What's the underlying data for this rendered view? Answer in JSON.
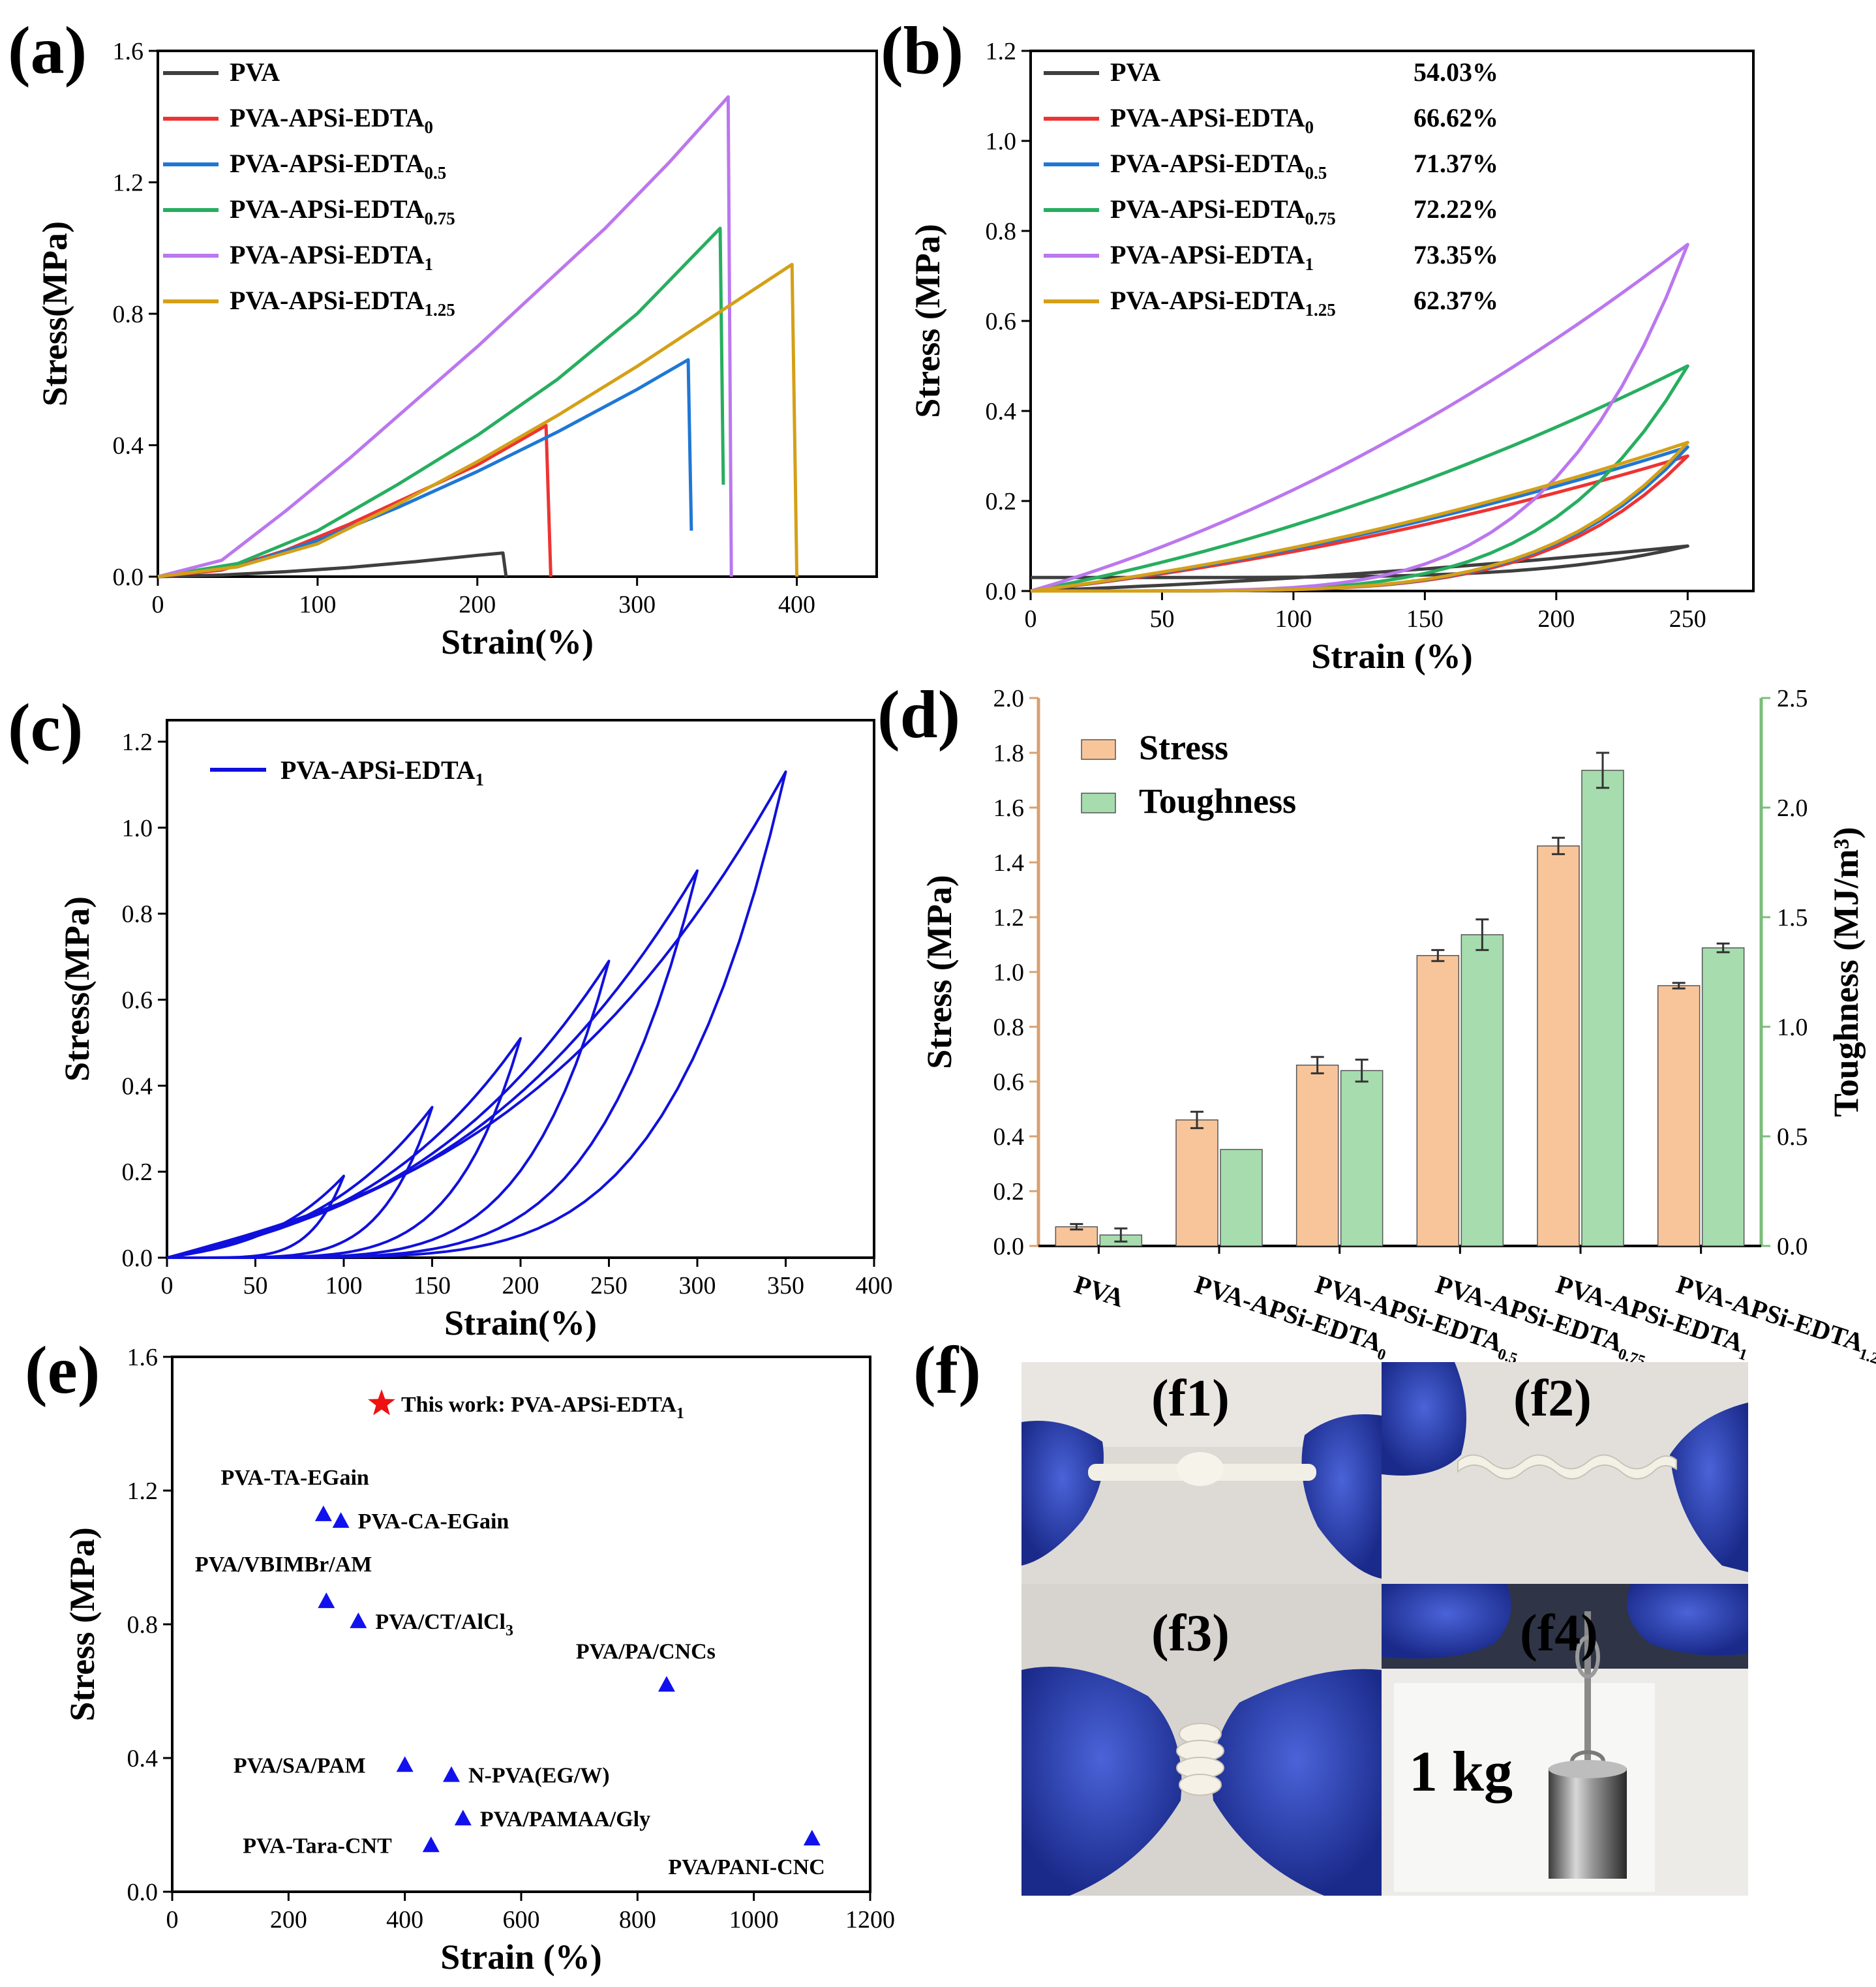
{
  "chart_data": [
    {
      "panel": "(a)",
      "type": "line",
      "xlabel": "Strain(%)",
      "ylabel": "Stress(MPa)",
      "xlim": [
        0,
        450
      ],
      "ylim": [
        0,
        1.6
      ],
      "xticks": [
        0,
        100,
        200,
        300,
        400
      ],
      "yticks": [
        0.0,
        0.4,
        0.8,
        1.2,
        1.6
      ],
      "ytick_labels": [
        "0.0",
        "0.4",
        "0.8",
        "1.2",
        "1.6"
      ],
      "legend_position": "top-left",
      "series": [
        {
          "name": "PVA",
          "sub": "",
          "color": "#3f3f3f",
          "points": [
            [
              0,
              0
            ],
            [
              40,
              0.005
            ],
            [
              80,
              0.015
            ],
            [
              120,
              0.028
            ],
            [
              160,
              0.045
            ],
            [
              200,
              0.065
            ],
            [
              216,
              0.072
            ],
            [
              218,
              0.0
            ]
          ]
        },
        {
          "name": "PVA-APSi-EDTA",
          "sub": "0",
          "color": "#ee3333",
          "points": [
            [
              0,
              0
            ],
            [
              40,
              0.02
            ],
            [
              80,
              0.08
            ],
            [
              120,
              0.16
            ],
            [
              160,
              0.25
            ],
            [
              200,
              0.34
            ],
            [
              243,
              0.46
            ],
            [
              246,
              0.0
            ]
          ]
        },
        {
          "name": "PVA-APSi-EDTA",
          "sub": "0.5",
          "color": "#1f77d4",
          "points": [
            [
              0,
              0
            ],
            [
              50,
              0.03
            ],
            [
              100,
              0.11
            ],
            [
              150,
              0.21
            ],
            [
              200,
              0.32
            ],
            [
              250,
              0.44
            ],
            [
              300,
              0.57
            ],
            [
              332,
              0.66
            ],
            [
              334,
              0.14
            ]
          ]
        },
        {
          "name": "PVA-APSi-EDTA",
          "sub": "0.75",
          "color": "#27ae60",
          "points": [
            [
              0,
              0
            ],
            [
              50,
              0.04
            ],
            [
              100,
              0.14
            ],
            [
              150,
              0.28
            ],
            [
              200,
              0.43
            ],
            [
              250,
              0.6
            ],
            [
              300,
              0.8
            ],
            [
              352,
              1.06
            ],
            [
              354,
              0.28
            ]
          ]
        },
        {
          "name": "PVA-APSi-EDTA",
          "sub": "1",
          "color": "#bb77ee",
          "points": [
            [
              0,
              0
            ],
            [
              40,
              0.05
            ],
            [
              80,
              0.2
            ],
            [
              120,
              0.36
            ],
            [
              160,
              0.53
            ],
            [
              200,
              0.7
            ],
            [
              240,
              0.88
            ],
            [
              280,
              1.06
            ],
            [
              320,
              1.26
            ],
            [
              357,
              1.46
            ],
            [
              359,
              0.0
            ]
          ]
        },
        {
          "name": "PVA-APSi-EDTA",
          "sub": "1.25",
          "color": "#d4a017",
          "points": [
            [
              0,
              0
            ],
            [
              50,
              0.03
            ],
            [
              100,
              0.1
            ],
            [
              150,
              0.22
            ],
            [
              200,
              0.35
            ],
            [
              250,
              0.49
            ],
            [
              300,
              0.64
            ],
            [
              350,
              0.8
            ],
            [
              397,
              0.95
            ],
            [
              400,
              0.0
            ]
          ]
        }
      ]
    },
    {
      "panel": "(b)",
      "type": "line",
      "xlabel": "Strain (%)",
      "ylabel": "Stress (MPa)",
      "xlim": [
        0,
        275
      ],
      "ylim": [
        0,
        1.2
      ],
      "xticks": [
        0,
        50,
        100,
        150,
        200,
        250
      ],
      "yticks": [
        0.0,
        0.2,
        0.4,
        0.6,
        0.8,
        1.0,
        1.2
      ],
      "ytick_labels": [
        "0.0",
        "0.2",
        "0.4",
        "0.6",
        "0.8",
        "1.0",
        "1.2"
      ],
      "legend_position": "top-left",
      "series": [
        {
          "name": "PVA",
          "sub": "",
          "value": "54.03%",
          "color": "#3f3f3f",
          "peak": 0.1,
          "set": 0.03
        },
        {
          "name": "PVA-APSi-EDTA",
          "sub": "0",
          "value": "66.62%",
          "color": "#ee3333",
          "peak": 0.3,
          "set": 0.0
        },
        {
          "name": "PVA-APSi-EDTA",
          "sub": "0.5",
          "value": "71.37%",
          "color": "#1f77d4",
          "peak": 0.32,
          "set": 0.0
        },
        {
          "name": "PVA-APSi-EDTA",
          "sub": "0.75",
          "value": "72.22%",
          "color": "#27ae60",
          "peak": 0.5,
          "set": 0.0
        },
        {
          "name": "PVA-APSi-EDTA",
          "sub": "1",
          "value": "73.35%",
          "color": "#bb77ee",
          "peak": 0.77,
          "set": 0.0
        },
        {
          "name": "PVA-APSi-EDTA",
          "sub": "1.25",
          "value": "62.37%",
          "color": "#d4a017",
          "peak": 0.33,
          "set": 0.0
        }
      ]
    },
    {
      "panel": "(c)",
      "type": "line",
      "xlabel": "Strain(%)",
      "ylabel": "Stress(MPa)",
      "xlim": [
        0,
        400
      ],
      "ylim": [
        0,
        1.25
      ],
      "xticks": [
        0,
        50,
        100,
        150,
        200,
        250,
        300,
        350,
        400
      ],
      "yticks": [
        0.0,
        0.2,
        0.4,
        0.6,
        0.8,
        1.0,
        1.2
      ],
      "ytick_labels": [
        "0.0",
        "0.2",
        "0.4",
        "0.6",
        "0.8",
        "1.0",
        "1.2"
      ],
      "legend_position": "top-left",
      "legend": {
        "name": "PVA-APSi-EDTA",
        "sub": "1"
      },
      "color": "#1010dd",
      "cycles": [
        {
          "strain": 100,
          "stress": 0.19
        },
        {
          "strain": 150,
          "stress": 0.35
        },
        {
          "strain": 200,
          "stress": 0.51
        },
        {
          "strain": 250,
          "stress": 0.69
        },
        {
          "strain": 300,
          "stress": 0.9
        },
        {
          "strain": 350,
          "stress": 1.13
        }
      ]
    },
    {
      "panel": "(d)",
      "type": "bar",
      "ylabel": "Stress (MPa)",
      "y2label": "Toughness (MJ/m³)",
      "ylim": [
        0,
        2.0
      ],
      "y2lim": [
        0,
        2.5
      ],
      "yticks": [
        0.0,
        0.2,
        0.4,
        0.6,
        0.8,
        1.0,
        1.2,
        1.4,
        1.6,
        1.8,
        2.0
      ],
      "ytick_labels": [
        "0.0",
        "0.2",
        "0.4",
        "0.6",
        "0.8",
        "1.0",
        "1.2",
        "1.4",
        "1.6",
        "1.8",
        "2.0"
      ],
      "y2ticks": [
        0.0,
        0.5,
        1.0,
        1.5,
        2.0,
        2.5
      ],
      "y2tick_labels": [
        "0.0",
        "0.5",
        "1.0",
        "1.5",
        "2.0",
        "2.5"
      ],
      "categories": [
        {
          "name": "PVA",
          "sub": ""
        },
        {
          "name": "PVA-APSi-EDTA",
          "sub": "0"
        },
        {
          "name": "PVA-APSi-EDTA",
          "sub": "0.5"
        },
        {
          "name": "PVA-APSi-EDTA",
          "sub": "0.75"
        },
        {
          "name": "PVA-APSi-EDTA",
          "sub": "1"
        },
        {
          "name": "PVA-APSi-EDTA",
          "sub": "1.25"
        }
      ],
      "legend_position": "top-left",
      "series": [
        {
          "name": "Stress",
          "axis": "left",
          "color": "#f8c59b",
          "values": [
            0.07,
            0.46,
            0.66,
            1.06,
            1.46,
            0.95
          ],
          "errors": [
            0.01,
            0.03,
            0.03,
            0.02,
            0.03,
            0.01
          ]
        },
        {
          "name": "Toughness",
          "axis": "right",
          "color": "#a6dcae",
          "values": [
            0.05,
            0.44,
            0.8,
            1.42,
            2.17,
            1.36
          ],
          "errors": [
            0.03,
            0.0,
            0.05,
            0.07,
            0.08,
            0.02
          ]
        }
      ]
    },
    {
      "panel": "(e)",
      "type": "scatter",
      "xlabel": "Strain (%)",
      "ylabel": "Stress (MPa)",
      "xlim": [
        0,
        1200
      ],
      "ylim": [
        0,
        1.6
      ],
      "xticks": [
        0,
        200,
        400,
        600,
        800,
        1000,
        1200
      ],
      "yticks": [
        0.0,
        0.4,
        0.8,
        1.2,
        1.6
      ],
      "ytick_labels": [
        "0.0",
        "0.4",
        "0.8",
        "1.2",
        "1.6"
      ],
      "highlight": {
        "label": "This work: PVA-APSi-EDTA",
        "sub": "1",
        "x": 360,
        "y": 1.46,
        "color": "#ee1111"
      },
      "points": [
        {
          "label": "PVA-TA-EGain",
          "sub": "",
          "x": 260,
          "y": 1.13,
          "pos": "above-left"
        },
        {
          "label": "PVA-CA-EGain",
          "sub": "",
          "x": 290,
          "y": 1.11,
          "pos": "right"
        },
        {
          "label": "PVA/VBIMBr/AM",
          "sub": "",
          "x": 265,
          "y": 0.87,
          "pos": "above-left"
        },
        {
          "label": "PVA/CT/AlCl",
          "sub": "3",
          "x": 320,
          "y": 0.81,
          "pos": "right"
        },
        {
          "label": "PVA/PA/CNCs",
          "sub": "",
          "x": 850,
          "y": 0.62,
          "pos": "above"
        },
        {
          "label": "PVA/SA/PAM",
          "sub": "",
          "x": 400,
          "y": 0.38,
          "pos": "left"
        },
        {
          "label": "N-PVA(EG/W)",
          "sub": "",
          "x": 480,
          "y": 0.35,
          "pos": "right"
        },
        {
          "label": "PVA/PAMAA/Gly",
          "sub": "",
          "x": 500,
          "y": 0.22,
          "pos": "right"
        },
        {
          "label": "PVA-Tara-CNT",
          "sub": "",
          "x": 445,
          "y": 0.14,
          "pos": "left"
        },
        {
          "label": "PVA/PANI-CNC",
          "sub": "",
          "x": 1100,
          "y": 0.16,
          "pos": "below"
        }
      ],
      "marker_color": "#1111ee"
    }
  ],
  "panel_labels": {
    "a": "(a)",
    "b": "(b)",
    "c": "(c)",
    "d": "(d)",
    "e": "(e)",
    "f": "(f)"
  },
  "photos": {
    "f1": "(f1)",
    "f2": "(f2)",
    "f3": "(f3)",
    "f4": "(f4)",
    "weight_label": "1 kg"
  }
}
